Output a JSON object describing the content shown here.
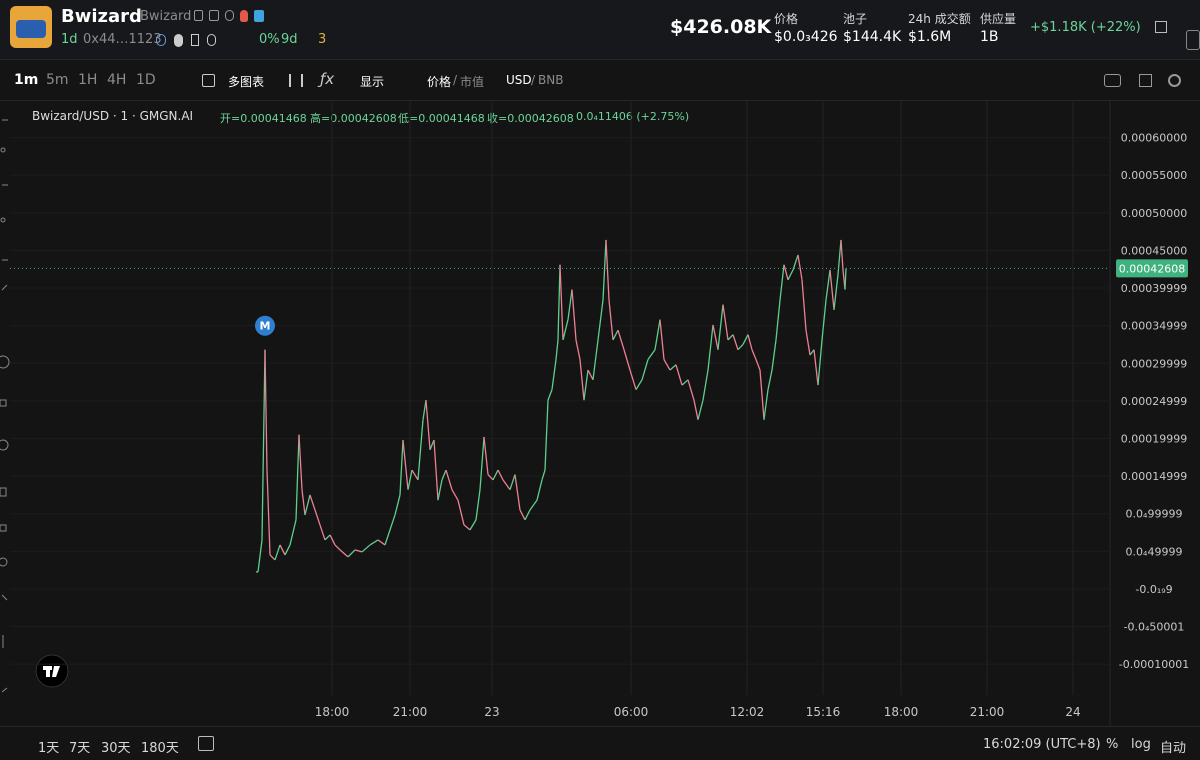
{
  "header": {
    "name": "Bwizard",
    "alias": "Bwizard",
    "age": "1d",
    "address": "0x44…1123",
    "holder_pct": "0%",
    "holder_age": "9d",
    "count": "3",
    "market_cap": "$426.08K",
    "stats": [
      {
        "label": "价格",
        "value": "$0.0₃426"
      },
      {
        "label": "池子",
        "value": "$144.4K"
      },
      {
        "label": "24h 成交额",
        "value": "$1.6M"
      },
      {
        "label": "供应量",
        "value": "1B"
      }
    ],
    "change": "+$1.18K (+22%)"
  },
  "toolbar": {
    "intervals": [
      "1m",
      "5m",
      "1H",
      "4H",
      "1D"
    ],
    "multi_chart": "多图表",
    "display": "显示",
    "price": "价格",
    "market_cap": "市值",
    "usd": "USD",
    "bnb": "BNB"
  },
  "legend": {
    "symbol": "Bwizard/USD · 1 · GMGN.AI",
    "open": "开=0.00041468",
    "high": "高=0.00042608",
    "low": "低=0.00041468",
    "close": "收=0.00042608",
    "change": "0.0₄11406 (+2.75%)"
  },
  "chart_data": {
    "type": "line",
    "up_color": "#5fcf8b",
    "down_color": "#ee7f95",
    "price_line_color": "#3fb27f",
    "grid": true,
    "x": [
      0,
      4,
      7,
      9,
      12,
      17,
      22,
      27,
      32,
      38,
      41,
      44,
      47,
      52,
      57,
      62,
      67,
      72,
      77,
      82,
      90,
      97,
      104,
      112,
      120,
      127,
      132,
      137,
      142,
      145,
      150,
      154,
      160,
      165,
      168,
      172,
      176,
      180,
      184,
      188,
      194,
      200,
      206,
      212,
      218,
      222,
      226,
      230,
      235,
      240,
      245,
      252,
      257,
      262,
      267,
      272,
      279,
      284,
      287,
      290,
      294,
      298,
      300,
      302,
      305,
      310,
      314,
      318,
      322,
      326,
      330,
      335,
      340,
      345,
      348,
      351,
      355,
      360,
      366,
      372,
      378,
      384,
      390,
      397,
      402,
      406,
      412,
      418,
      424,
      430,
      436,
      440,
      445,
      450,
      455,
      460,
      465,
      470,
      475,
      480,
      485,
      490,
      494,
      498,
      502,
      506,
      510,
      514,
      518,
      522,
      526,
      530,
      535,
      540,
      544,
      548,
      552,
      556,
      560,
      564,
      568,
      572,
      576,
      580,
      583,
      585,
      587,
      588
    ],
    "values": [
      2.26e-05,
      6.52e-05,
      0.000318,
      0.000158,
      4.52e-05,
      3.86e-05,
      5.85e-05,
      4.52e-05,
      5.85e-05,
      9.18e-05,
      0.000205,
      0.000132,
      9.84e-05,
      0.000125,
      0.000105,
      8.51e-05,
      6.52e-05,
      7.18e-05,
      5.85e-05,
      5.19e-05,
      4.26e-05,
      5.19e-05,
      4.92e-05,
      5.85e-05,
      6.52e-05,
      5.85e-05,
      7.85e-05,
      9.84e-05,
      0.000125,
      0.000198,
      0.000132,
      0.000158,
      0.000145,
      0.000225,
      0.000251,
      0.000185,
      0.000198,
      0.000118,
      0.000145,
      0.000158,
      0.000132,
      0.000118,
      8.51e-05,
      7.85e-05,
      9.18e-05,
      0.000132,
      0.000202,
      0.000152,
      0.000145,
      0.000158,
      0.000145,
      0.000132,
      0.000152,
      0.000105,
      9.18e-05,
      0.000105,
      0.000118,
      0.000145,
      0.000158,
      0.000251,
      0.000265,
      0.000305,
      0.000331,
      0.000431,
      0.000331,
      0.000358,
      0.000398,
      0.000331,
      0.000305,
      0.000251,
      0.000291,
      0.000278,
      0.000331,
      0.000384,
      0.000464,
      0.000384,
      0.000331,
      0.000344,
      0.000318,
      0.000291,
      0.000265,
      0.000278,
      0.000305,
      0.000318,
      0.000358,
      0.000305,
      0.000291,
      0.000298,
      0.000271,
      0.000278,
      0.000251,
      0.000225,
      0.000251,
      0.000291,
      0.000351,
      0.000318,
      0.000378,
      0.000331,
      0.000338,
      0.000318,
      0.000325,
      0.000338,
      0.000318,
      0.000305,
      0.000291,
      0.000225,
      0.000265,
      0.000291,
      0.000331,
      0.000384,
      0.000431,
      0.000411,
      0.000424,
      0.000444,
      0.000411,
      0.000344,
      0.000311,
      0.000318,
      0.000271,
      0.000331,
      0.000384,
      0.000424,
      0.000371,
      0.000418,
      0.000464,
      0.000424,
      0.000398,
      0.00042608
    ],
    "last_price": 0.00042608,
    "annotation": {
      "label": "M",
      "x": 7,
      "value": 0.000318
    },
    "xlim": [
      -248,
      852
    ],
    "xticks": [
      {
        "value": 74,
        "label": "18:00"
      },
      {
        "value": 152,
        "label": "21:00"
      },
      {
        "value": 234,
        "label": "23"
      },
      {
        "value": 373,
        "label": "06:00"
      },
      {
        "value": 489,
        "label": "12:02"
      },
      {
        "value": 565,
        "label": "15:16"
      },
      {
        "value": 643,
        "label": "18:00"
      },
      {
        "value": 729,
        "label": "21:00"
      },
      {
        "value": 815,
        "label": "24"
      }
    ],
    "ylim": [
      -0.000141,
      0.00065
    ],
    "yticks": [
      {
        "value": 0.0006,
        "label": "0.00060000"
      },
      {
        "value": 0.00055,
        "label": "0.00055000"
      },
      {
        "value": 0.0005,
        "label": "0.00050000"
      },
      {
        "value": 0.00045,
        "label": "0.00045000"
      },
      0.00039999,
      0.00034999,
      0.00029999,
      0.00024999,
      0.00019999,
      0.00014999,
      {
        "value": 9.9999e-05,
        "label": "0.0₄99999"
      },
      {
        "value": 4.9999e-05,
        "label": "0.0₄49999"
      },
      {
        "value": -9e-19,
        "label": "-0.0₁₉9"
      },
      {
        "value": -5.0001e-05,
        "label": "-0.0₄50001"
      },
      -0.00010001
    ]
  },
  "footer": {
    "ranges": [
      "1天",
      "7天",
      "30天",
      "180天"
    ],
    "clock": "16:02:09 (UTC+8)",
    "percent": "%",
    "log": "log",
    "auto": "自动"
  }
}
